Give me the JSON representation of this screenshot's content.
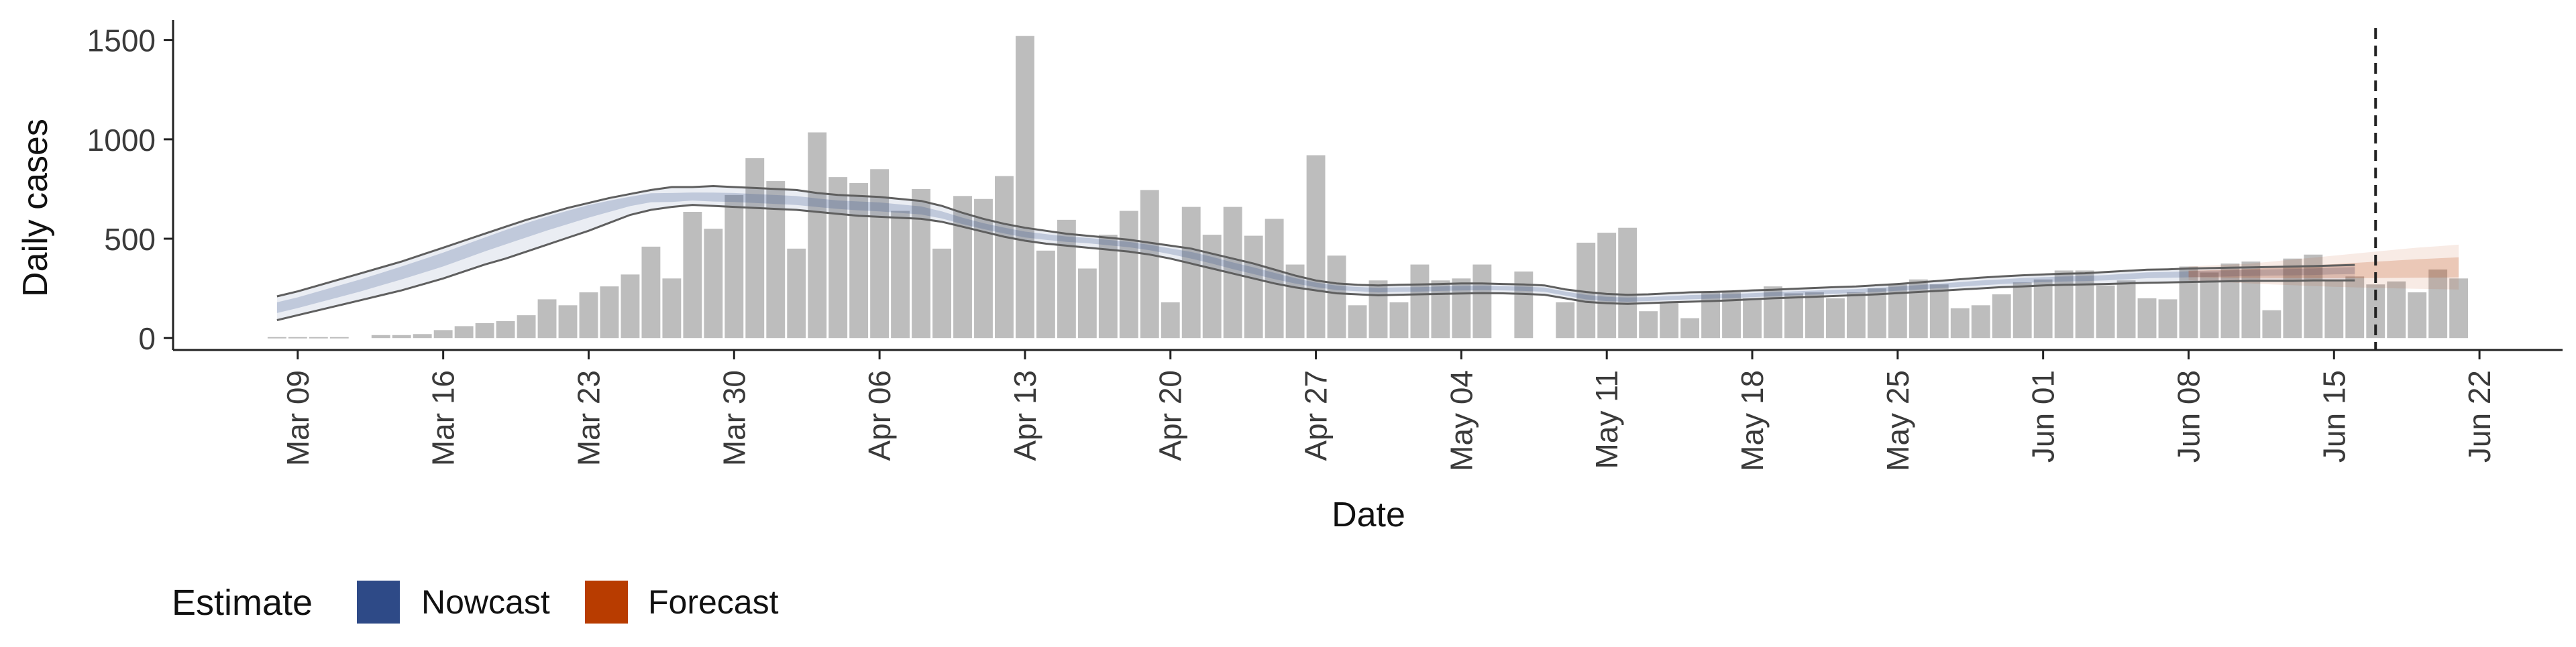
{
  "chart_data": {
    "type": "bar",
    "xlabel": "Date",
    "ylabel": "Daily cases",
    "ylim": [
      -60,
      1600
    ],
    "y_ticks": [
      0,
      500,
      1000,
      1500
    ],
    "x_ticks": [
      "2020-03-09",
      "2020-03-16",
      "2020-03-23",
      "2020-03-30",
      "2020-04-06",
      "2020-04-13",
      "2020-04-20",
      "2020-04-27",
      "2020-05-04",
      "2020-05-11",
      "2020-05-18",
      "2020-05-25",
      "2020-06-01",
      "2020-06-08",
      "2020-06-15",
      "2020-06-22"
    ],
    "x_tick_labels": [
      "Mar 09",
      "Mar 16",
      "Mar 23",
      "Mar 30",
      "Apr 06",
      "Apr 13",
      "Apr 20",
      "Apr 27",
      "May 04",
      "May 11",
      "May 18",
      "May 25",
      "Jun 01",
      "Jun 08",
      "Jun 15",
      "Jun 22"
    ],
    "xlim": [
      "2020-03-03",
      "2020-06-26"
    ],
    "grid": false,
    "legend": {
      "position": "bottom-left",
      "title": "Estimate",
      "items": [
        {
          "label": "Nowcast",
          "color": "#2E4A87"
        },
        {
          "label": "Forecast",
          "color": "#B83C00"
        }
      ]
    },
    "bar_color": "#BDBDBD",
    "cases": {
      "start_date": "2020-03-08",
      "values": [
        5,
        5,
        5,
        5,
        null,
        15,
        15,
        20,
        40,
        60,
        75,
        85,
        115,
        195,
        165,
        230,
        260,
        320,
        460,
        300,
        635,
        550,
        720,
        905,
        790,
        450,
        1035,
        810,
        780,
        850,
        640,
        750,
        450,
        715,
        700,
        815,
        1520,
        440,
        595,
        350,
        520,
        640,
        745,
        180,
        660,
        520,
        660,
        515,
        600,
        370,
        920,
        415,
        165,
        290,
        180,
        370,
        290,
        300,
        370,
        null,
        335,
        null,
        180,
        480,
        530,
        555,
        135,
        180,
        100,
        230,
        230,
        200,
        260,
        225,
        230,
        200,
        230,
        250,
        270,
        295,
        270,
        150,
        165,
        220,
        280,
        295,
        340,
        340,
        265,
        290,
        200,
        195,
        360,
        330,
        375,
        385,
        140,
        400,
        420,
        290,
        310,
        270,
        285,
        230,
        345,
        300
      ]
    },
    "dashed_line_date": "2020-06-17",
    "nowcast": {
      "color": "#2E4A87",
      "start_date": "2020-03-08",
      "center": [
        155,
        180,
        210,
        240,
        270,
        305,
        340,
        375,
        410,
        450,
        490,
        530,
        565,
        600,
        630,
        660,
        680,
        700,
        715,
        705,
        710,
        705,
        705,
        700,
        695,
        690,
        680,
        670,
        665,
        660,
        650,
        640,
        615,
        585,
        560,
        540,
        520,
        510,
        500,
        495,
        485,
        475,
        460,
        440,
        420,
        395,
        365,
        340,
        315,
        290,
        270,
        255,
        248,
        242,
        245,
        245,
        250,
        252,
        254,
        252,
        250,
        245,
        225,
        205,
        195,
        192,
        195,
        200,
        205,
        208,
        210,
        215,
        220,
        225,
        228,
        232,
        236,
        242,
        248,
        255,
        262,
        270,
        278,
        284,
        290,
        295,
        298,
        300,
        305,
        312,
        320,
        322,
        325,
        328,
        330,
        333,
        336,
        338,
        340,
        345,
        348
      ],
      "outer_lower": [
        90,
        115,
        140,
        165,
        190,
        215,
        240,
        270,
        300,
        335,
        370,
        400,
        435,
        470,
        505,
        540,
        580,
        620,
        645,
        660,
        670,
        665,
        660,
        655,
        650,
        645,
        635,
        625,
        615,
        610,
        605,
        600,
        585,
        560,
        535,
        510,
        490,
        475,
        465,
        455,
        445,
        435,
        420,
        400,
        375,
        350,
        325,
        300,
        275,
        255,
        240,
        225,
        220,
        215,
        218,
        220,
        222,
        224,
        226,
        225,
        222,
        218,
        200,
        182,
        175,
        172,
        176,
        180,
        183,
        186,
        190,
        195,
        200,
        204,
        208,
        212,
        216,
        220,
        226,
        232,
        238,
        244,
        250,
        256,
        260,
        265,
        268,
        270,
        272,
        275,
        278,
        280,
        282,
        284,
        286,
        288,
        288,
        288,
        290,
        290,
        290
      ],
      "outer_upper": [
        210,
        235,
        265,
        295,
        325,
        355,
        385,
        420,
        455,
        490,
        525,
        560,
        595,
        625,
        655,
        680,
        705,
        725,
        745,
        760,
        760,
        765,
        760,
        755,
        750,
        745,
        730,
        720,
        715,
        710,
        700,
        690,
        665,
        630,
        600,
        575,
        555,
        540,
        525,
        515,
        505,
        495,
        480,
        465,
        450,
        425,
        400,
        375,
        345,
        315,
        290,
        275,
        268,
        265,
        268,
        270,
        272,
        275,
        275,
        272,
        270,
        265,
        245,
        232,
        222,
        218,
        220,
        225,
        230,
        232,
        235,
        240,
        243,
        248,
        252,
        256,
        260,
        266,
        272,
        280,
        288,
        296,
        304,
        310,
        316,
        320,
        324,
        326,
        332,
        338,
        344,
        346,
        350,
        352,
        354,
        356,
        358,
        360,
        362,
        365,
        368
      ]
    },
    "forecast": {
      "color": "#B83C00",
      "start_date": "2020-06-08",
      "center": [
        320,
        322,
        324,
        326,
        328,
        331,
        334,
        337,
        340,
        343,
        346,
        349,
        352,
        355
      ],
      "outer_lower": [
        290,
        285,
        280,
        275,
        270,
        266,
        262,
        258,
        255,
        252,
        250,
        248,
        246,
        244
      ],
      "outer_upper": [
        360,
        365,
        370,
        375,
        385,
        395,
        405,
        415,
        425,
        435,
        445,
        455,
        462,
        470
      ]
    }
  }
}
